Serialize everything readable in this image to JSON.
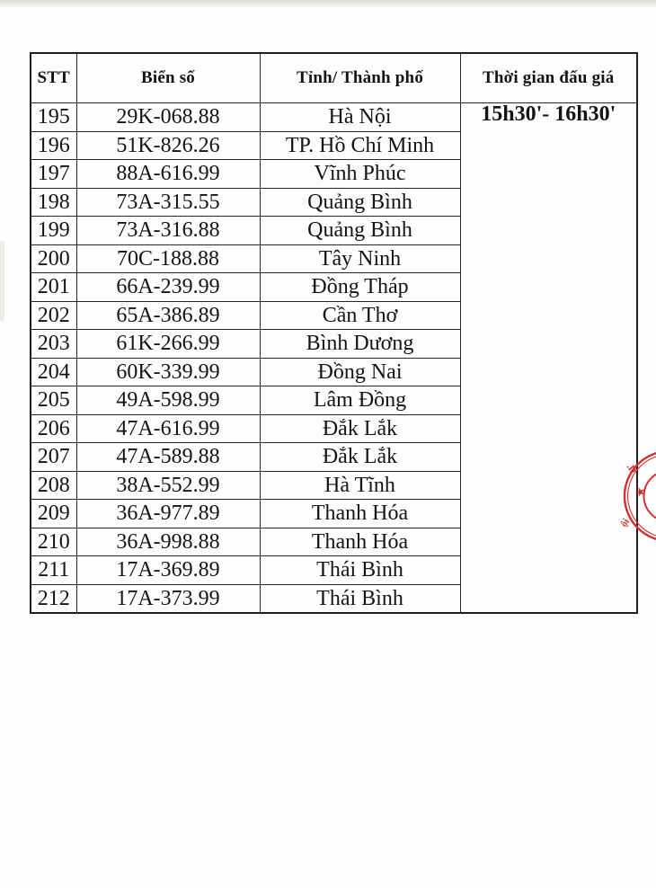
{
  "table": {
    "headers": [
      "STT",
      "Biển số",
      "Tỉnh/ Thành phố",
      "Thời gian đấu giá"
    ],
    "time_range": "15h30'- 16h30'",
    "rows": [
      {
        "stt": "195",
        "plate": "29K-068.88",
        "province": "Hà Nội"
      },
      {
        "stt": "196",
        "plate": "51K-826.26",
        "province": "TP. Hồ Chí Minh"
      },
      {
        "stt": "197",
        "plate": "88A-616.99",
        "province": "Vĩnh Phúc"
      },
      {
        "stt": "198",
        "plate": "73A-315.55",
        "province": "Quảng Bình"
      },
      {
        "stt": "199",
        "plate": "73A-316.88",
        "province": "Quảng Bình"
      },
      {
        "stt": "200",
        "plate": "70C-188.88",
        "province": "Tây Ninh"
      },
      {
        "stt": "201",
        "plate": "66A-239.99",
        "province": "Đồng Tháp"
      },
      {
        "stt": "202",
        "plate": "65A-386.89",
        "province": "Cần Thơ"
      },
      {
        "stt": "203",
        "plate": "61K-266.99",
        "province": "Bình Dương"
      },
      {
        "stt": "204",
        "plate": "60K-339.99",
        "province": "Đồng Nai"
      },
      {
        "stt": "205",
        "plate": "49A-598.99",
        "province": "Lâm Đồng"
      },
      {
        "stt": "206",
        "plate": "47A-616.99",
        "province": "Đắk Lắk"
      },
      {
        "stt": "207",
        "plate": "47A-589.88",
        "province": "Đắk Lắk"
      },
      {
        "stt": "208",
        "plate": "38A-552.99",
        "province": "Hà Tĩnh"
      },
      {
        "stt": "209",
        "plate": "36A-977.89",
        "province": "Thanh Hóa"
      },
      {
        "stt": "210",
        "plate": "36A-998.88",
        "province": "Thanh Hóa"
      },
      {
        "stt": "211",
        "plate": "17A-369.89",
        "province": "Thái Bình"
      },
      {
        "stt": "212",
        "plate": "17A-373.99",
        "province": "Thái Bình"
      }
    ]
  },
  "seal": {
    "color": "#cf3236",
    "fragments": {
      "top": ".D",
      "bottom": "ội"
    }
  },
  "colors": {
    "ink": "#141414",
    "border": "#262626",
    "seal_red": "#cf3236"
  }
}
